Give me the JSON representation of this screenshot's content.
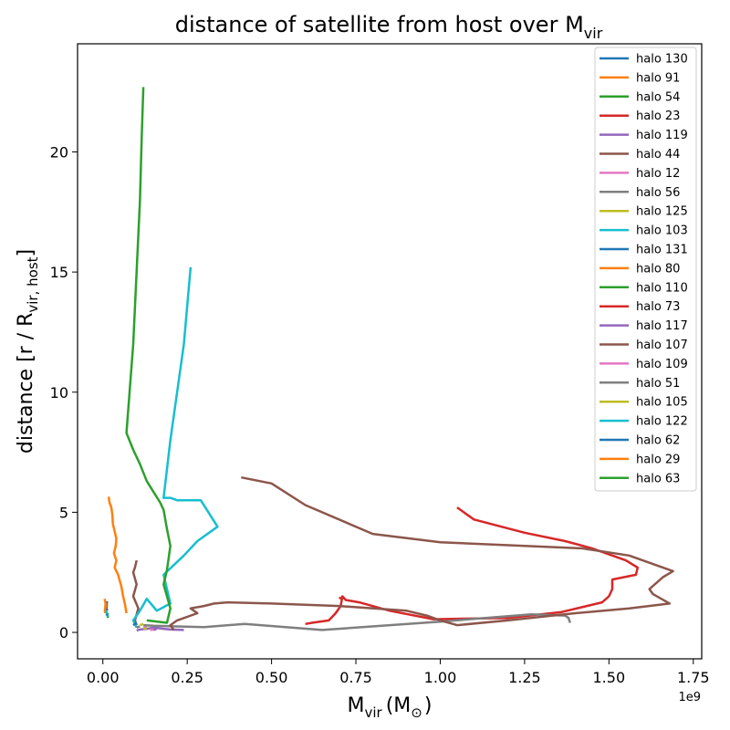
{
  "chart_data": {
    "type": "line",
    "title_main": "distance of satellite from host over M",
    "title_sub": "vir",
    "xlabel_main": "M",
    "xlabel_sub": "vir",
    "xlabel_unit": "(M",
    "xlabel_unit_sub": "⊙",
    "xlabel_close": ")",
    "ylabel_main": "distance [r / R",
    "ylabel_sub": "vir, host",
    "ylabel_close": "]",
    "x_offset_text": "1e9",
    "xlim": [
      -0.075,
      1.775
    ],
    "ylim": [
      -1.1,
      24.5
    ],
    "x_ticks": [
      0.0,
      0.25,
      0.5,
      0.75,
      1.0,
      1.25,
      1.5,
      1.75
    ],
    "x_tick_labels": [
      "0.00",
      "0.25",
      "0.50",
      "0.75",
      "1.00",
      "1.25",
      "1.50",
      "1.75"
    ],
    "y_ticks": [
      0,
      5,
      10,
      15,
      20
    ],
    "y_tick_labels": [
      "0",
      "5",
      "10",
      "15",
      "20"
    ],
    "legend_position": "top-right",
    "series": [
      {
        "name": "halo 130",
        "color": "#1f77b4",
        "x": [
          0.012,
          0.011,
          0.013
        ],
        "y": [
          1.3,
          1.0,
          0.9
        ]
      },
      {
        "name": "halo 91",
        "color": "#ff7f0e",
        "x": [
          0.005,
          0.008,
          0.006,
          0.007
        ],
        "y": [
          1.4,
          1.2,
          0.9,
          0.8
        ]
      },
      {
        "name": "halo 54",
        "color": "#2ca02c",
        "x": [
          0.015,
          0.014
        ],
        "y": [
          0.6,
          0.7
        ]
      },
      {
        "name": "halo 23",
        "color": "#d62728",
        "x": [
          0.6,
          0.62,
          0.67,
          0.69,
          0.705,
          0.71,
          0.72,
          0.76,
          0.85,
          0.98,
          1.2,
          1.36,
          1.48,
          1.5,
          1.51,
          1.51,
          1.58,
          1.585,
          1.55,
          1.45,
          1.37,
          1.25,
          1.1,
          1.05
        ],
        "y": [
          0.35,
          0.4,
          0.5,
          0.8,
          1.1,
          1.5,
          1.35,
          1.25,
          0.9,
          0.55,
          0.6,
          0.85,
          1.25,
          1.5,
          1.8,
          2.2,
          2.4,
          2.7,
          3.0,
          3.5,
          3.8,
          4.15,
          4.7,
          5.2
        ]
      },
      {
        "name": "halo 119",
        "color": "#9467bd",
        "x": [
          0.1,
          0.11,
          0.13,
          0.15,
          0.18,
          0.2,
          0.24
        ],
        "y": [
          0.08,
          0.12,
          0.15,
          0.2,
          0.15,
          0.12,
          0.1
        ]
      },
      {
        "name": "halo 44",
        "color": "#8c564b",
        "x": [
          0.1,
          0.095,
          0.105,
          0.09,
          0.1,
          0.09,
          0.095,
          0.1
        ],
        "y": [
          0.3,
          0.5,
          1.0,
          1.5,
          2.0,
          2.5,
          2.7,
          3.0
        ]
      },
      {
        "name": "halo 12",
        "color": "#e377c2",
        "x": [
          0.12,
          0.13
        ],
        "y": [
          0.2,
          0.25
        ]
      },
      {
        "name": "halo 56",
        "color": "#7f7f7f",
        "x": [
          0.12,
          0.15,
          0.22,
          0.3,
          0.42,
          0.65,
          1.0,
          1.27,
          1.37,
          1.38,
          1.385
        ],
        "y": [
          0.3,
          0.28,
          0.25,
          0.22,
          0.35,
          0.1,
          0.45,
          0.75,
          0.7,
          0.6,
          0.4
        ]
      },
      {
        "name": "halo 125",
        "color": "#bcbd22",
        "x": [
          0.11,
          0.12
        ],
        "y": [
          0.3,
          0.35
        ]
      },
      {
        "name": "halo 103",
        "color": "#17becf",
        "x": [
          0.1,
          0.09,
          0.1,
          0.11,
          0.13,
          0.16,
          0.2,
          0.18,
          0.21,
          0.24,
          0.28,
          0.34,
          0.29,
          0.26,
          0.22,
          0.2,
          0.18,
          0.2,
          0.22,
          0.24,
          0.26
        ],
        "y": [
          0.2,
          0.5,
          0.7,
          0.9,
          1.4,
          0.9,
          1.2,
          2.4,
          2.8,
          3.2,
          3.8,
          4.4,
          5.5,
          5.5,
          5.5,
          5.6,
          5.6,
          8.0,
          10.0,
          12.0,
          15.2
        ]
      },
      {
        "name": "halo 131",
        "color": "#1f77b4",
        "x": [
          0.09,
          0.1
        ],
        "y": [
          0.3,
          0.4
        ]
      },
      {
        "name": "halo 80",
        "color": "#ff7f0e",
        "x": [
          0.07,
          0.065,
          0.06,
          0.055,
          0.045,
          0.035,
          0.04,
          0.033,
          0.038,
          0.04,
          0.035,
          0.03,
          0.028,
          0.025,
          0.02,
          0.017
        ],
        "y": [
          0.8,
          1.2,
          1.5,
          1.9,
          2.4,
          2.7,
          3.0,
          3.3,
          3.6,
          3.9,
          4.2,
          4.5,
          4.9,
          5.2,
          5.4,
          5.65
        ]
      },
      {
        "name": "halo 110",
        "color": "#2ca02c",
        "x": [
          0.13,
          0.19,
          0.2,
          0.19,
          0.18,
          0.19,
          0.2,
          0.19,
          0.18,
          0.17,
          0.13,
          0.11,
          0.09,
          0.07,
          0.09,
          0.1,
          0.11,
          0.115,
          0.12
        ],
        "y": [
          0.5,
          0.4,
          1.0,
          1.5,
          2.0,
          2.6,
          3.6,
          4.3,
          5.1,
          5.4,
          6.3,
          7.0,
          7.6,
          8.3,
          12.0,
          15.0,
          18.0,
          20.5,
          22.7
        ]
      },
      {
        "name": "halo 73",
        "color": "#d62728",
        "x": [
          0.7,
          0.71
        ],
        "y": [
          1.45,
          1.4
        ]
      },
      {
        "name": "halo 117",
        "color": "#9467bd",
        "x": [
          0.15,
          0.16
        ],
        "y": [
          0.1,
          0.15
        ]
      },
      {
        "name": "halo 107",
        "color": "#8c564b",
        "x": [
          0.21,
          0.2,
          0.22,
          0.28,
          0.26,
          0.3,
          0.33,
          0.37,
          0.5,
          0.7,
          0.9,
          0.96,
          1.0,
          1.05,
          1.2,
          1.4,
          1.56,
          1.68,
          1.63,
          1.62,
          1.66,
          1.69,
          1.56,
          1.42,
          1.0,
          0.8,
          0.6,
          0.5,
          0.41
        ],
        "y": [
          0.1,
          0.3,
          0.5,
          0.8,
          1.0,
          1.1,
          1.2,
          1.25,
          1.2,
          1.1,
          0.9,
          0.7,
          0.5,
          0.3,
          0.5,
          0.8,
          1.0,
          1.2,
          1.6,
          1.8,
          2.3,
          2.55,
          3.2,
          3.5,
          3.75,
          4.1,
          5.3,
          6.2,
          6.45
        ]
      },
      {
        "name": "halo 109",
        "color": "#e377c2",
        "x": [
          0.14,
          0.15
        ],
        "y": [
          0.1,
          0.12
        ]
      },
      {
        "name": "halo 51",
        "color": "#7f7f7f",
        "x": [
          0.1,
          0.11
        ],
        "y": [
          0.2,
          0.25
        ]
      },
      {
        "name": "halo 105",
        "color": "#bcbd22",
        "x": [
          0.12,
          0.13
        ],
        "y": [
          0.15,
          0.18
        ]
      },
      {
        "name": "halo 122",
        "color": "#17becf",
        "x": [
          0.015,
          0.012,
          0.01
        ],
        "y": [
          0.65,
          0.8,
          0.9
        ]
      },
      {
        "name": "halo 62",
        "color": "#1f77b4",
        "x": [
          0.011,
          0.012
        ],
        "y": [
          0.7,
          0.75
        ]
      },
      {
        "name": "halo 29",
        "color": "#ff7f0e",
        "x": [
          0.008,
          0.009
        ],
        "y": [
          1.0,
          1.2
        ]
      },
      {
        "name": "halo 63",
        "color": "#2ca02c",
        "x": [
          0.014,
          0.015
        ],
        "y": [
          0.75,
          0.8
        ]
      }
    ]
  }
}
